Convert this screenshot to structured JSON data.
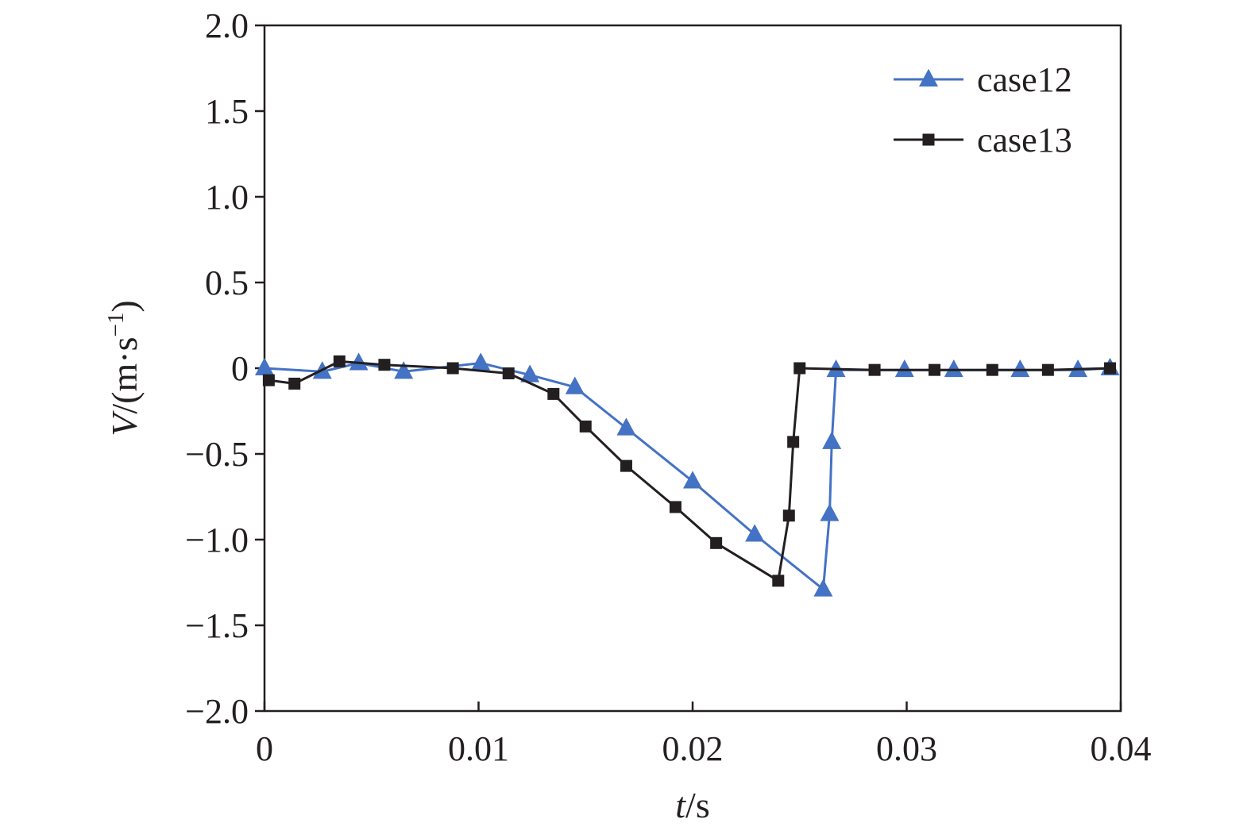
{
  "chart_data": {
    "type": "line",
    "title": "",
    "xlabel_var": "t",
    "xlabel_unit": "/s",
    "ylabel_var": "V",
    "ylabel_unit": "/(m·s",
    "ylabel_exp": "−1",
    "ylabel_close": ")",
    "xlim": [
      0,
      0.04
    ],
    "ylim": [
      -2.0,
      2.0
    ],
    "x_ticks": [
      0,
      0.01,
      0.02,
      0.03,
      0.04
    ],
    "x_tick_labels": [
      "0",
      "0.01",
      "0.02",
      "0.03",
      "0.04"
    ],
    "y_ticks": [
      2.0,
      1.5,
      1.0,
      0.5,
      0,
      -0.5,
      -1.0,
      -1.5,
      -2.0
    ],
    "y_tick_labels": [
      "2.0",
      "1.5",
      "1.0",
      "0.5",
      "0",
      "−0.5",
      "−1.0",
      "−1.5",
      "−2.0"
    ],
    "grid": false,
    "legend_position": "top-right",
    "series": [
      {
        "name": "case12",
        "color": "#4472c4",
        "marker": "triangle",
        "x": [
          0.0,
          0.0027,
          0.0044,
          0.0065,
          0.0101,
          0.0124,
          0.0145,
          0.0169,
          0.02,
          0.0229,
          0.0261,
          0.0264,
          0.0265,
          0.0267,
          0.0299,
          0.0322,
          0.0353,
          0.038,
          0.0395
        ],
        "y": [
          0.0,
          -0.02,
          0.03,
          -0.02,
          0.03,
          -0.04,
          -0.11,
          -0.35,
          -0.66,
          -0.97,
          -1.29,
          -0.85,
          -0.43,
          -0.01,
          -0.01,
          -0.01,
          -0.01,
          -0.01,
          0.0
        ]
      },
      {
        "name": "case13",
        "color": "#231f20",
        "marker": "square",
        "x": [
          0.0002,
          0.0014,
          0.0035,
          0.0056,
          0.0088,
          0.0114,
          0.0135,
          0.015,
          0.0169,
          0.0192,
          0.0211,
          0.024,
          0.0245,
          0.0247,
          0.025,
          0.0285,
          0.0313,
          0.034,
          0.0366,
          0.0395
        ],
        "y": [
          -0.07,
          -0.09,
          0.04,
          0.02,
          0.0,
          -0.03,
          -0.15,
          -0.34,
          -0.57,
          -0.81,
          -1.02,
          -1.24,
          -0.86,
          -0.43,
          0.0,
          -0.01,
          -0.01,
          -0.01,
          -0.01,
          0.0
        ]
      }
    ]
  }
}
